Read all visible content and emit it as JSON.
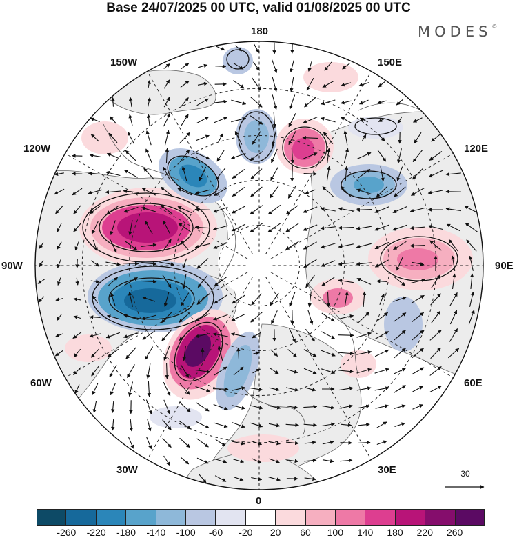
{
  "title": "Base 24/07/2025 00 UTC, valid 01/08/2025 00 UTC",
  "logo": {
    "text": "MODES",
    "mark": "©"
  },
  "longitude_labels": {
    "lon_180": "180",
    "lon_150e": "150E",
    "lon_120e": "120E",
    "lon_90e": "90E",
    "lon_60e": "60E",
    "lon_30e": "30E",
    "lon_0": "0",
    "lon_30w": "30W",
    "lon_60w": "60W",
    "lon_90w": "90W",
    "lon_120w": "120W",
    "lon_150w": "150W"
  },
  "reference_vector": {
    "label": "30"
  },
  "colorbar": {
    "ticks": [
      "-260",
      "-220",
      "-180",
      "-140",
      "-100",
      "-60",
      "-20",
      "20",
      "60",
      "100",
      "140",
      "180",
      "220",
      "260"
    ],
    "colors": [
      "#0d4a66",
      "#16699b",
      "#2b86b9",
      "#58a3cb",
      "#8eb8d9",
      "#b9c7e2",
      "#e2e4f1",
      "#ffffff",
      "#fbdadd",
      "#f6afc0",
      "#ee79a6",
      "#dd3e90",
      "#b81478",
      "#850d6c",
      "#5b0a63"
    ]
  }
}
